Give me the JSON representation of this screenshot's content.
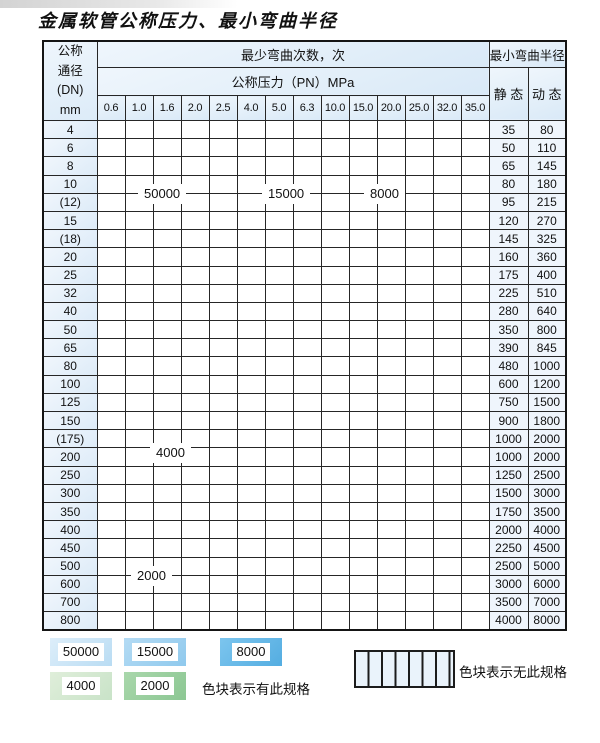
{
  "page": {
    "title": "金属软管公称压力、最小弯曲半径"
  },
  "table": {
    "corner_lines": [
      "公称",
      "通径",
      "(DN)",
      "mm"
    ],
    "cycles_header": "最少弯曲次数，次",
    "radius_header": "最小弯曲半径",
    "pressure_header": "公称压力（PN）MPa",
    "static_label": "静 态",
    "dynamic_label": "动 态",
    "pressures": [
      "0.6",
      "1.0",
      "1.6",
      "2.0",
      "2.5",
      "4.0",
      "5.0",
      "6.3",
      "10.0",
      "15.0",
      "20.0",
      "25.0",
      "32.0",
      "35.0"
    ],
    "zones_key": {
      "A": "50000",
      "B": "15000",
      "C": "8000",
      "D": "4000",
      "E": "2000",
      "X": "无此规格"
    },
    "rows": [
      {
        "dn": "4",
        "zones": "AAAAABBBBCCCCC",
        "static": "35",
        "dynamic": "80"
      },
      {
        "dn": "6",
        "zones": "AAAAABBBBCCCXX",
        "static": "50",
        "dynamic": "110"
      },
      {
        "dn": "8",
        "zones": "AAAAABBBBCCCXX",
        "static": "65",
        "dynamic": "145"
      },
      {
        "dn": "10",
        "zones": "AAAAABBBBCCCXX",
        "static": "80",
        "dynamic": "180"
      },
      {
        "dn": "(12)",
        "zones": "AAAAABBBBCCCXX",
        "static": "95",
        "dynamic": "215"
      },
      {
        "dn": "15",
        "zones": "AAAAABBBCCCCXX",
        "static": "120",
        "dynamic": "270"
      },
      {
        "dn": "(18)",
        "zones": "AAAAABBBCCCXXX",
        "static": "145",
        "dynamic": "325"
      },
      {
        "dn": "20",
        "zones": "AAAAABBBCCCXXX",
        "static": "160",
        "dynamic": "360"
      },
      {
        "dn": "25",
        "zones": "AAAAABBBCCXXXX",
        "static": "175",
        "dynamic": "400"
      },
      {
        "dn": "32",
        "zones": "AAAAABBCCXXXXX",
        "static": "225",
        "dynamic": "510"
      },
      {
        "dn": "40",
        "zones": "AAAAABBCCXXXXX",
        "static": "280",
        "dynamic": "640"
      },
      {
        "dn": "50",
        "zones": "AAAAABBCXXXXXX",
        "static": "350",
        "dynamic": "800"
      },
      {
        "dn": "65",
        "zones": "AAAAABBCXXXXXX",
        "static": "390",
        "dynamic": "845"
      },
      {
        "dn": "80",
        "zones": "AAAAABCXXXXXXX",
        "static": "480",
        "dynamic": "1000"
      },
      {
        "dn": "100",
        "zones": "DDDDDDDXXXXXXX",
        "static": "600",
        "dynamic": "1200"
      },
      {
        "dn": "125",
        "zones": "DDDDDDXXXXXXXX",
        "static": "750",
        "dynamic": "1500"
      },
      {
        "dn": "150",
        "zones": "DDDDDDXXXXXXXX",
        "static": "900",
        "dynamic": "1800"
      },
      {
        "dn": "(175)",
        "zones": "DDDDDDXXXXXXXX",
        "static": "1000",
        "dynamic": "2000"
      },
      {
        "dn": "200",
        "zones": "DDDDDDXXXXXXXX",
        "static": "1000",
        "dynamic": "2000"
      },
      {
        "dn": "250",
        "zones": "DDDDDDXXXXXXXX",
        "static": "1250",
        "dynamic": "2500"
      },
      {
        "dn": "300",
        "zones": "DDDDDDXXXXXXXX",
        "static": "1500",
        "dynamic": "3000"
      },
      {
        "dn": "350",
        "zones": "EEEEEXXXXXXXXX",
        "static": "1750",
        "dynamic": "3500"
      },
      {
        "dn": "400",
        "zones": "EEEEEXXXXXXXXX",
        "static": "2000",
        "dynamic": "4000"
      },
      {
        "dn": "450",
        "zones": "EEEEEXXXXXXXXX",
        "static": "2250",
        "dynamic": "4500"
      },
      {
        "dn": "500",
        "zones": "EEEEXXXXXXXXXX",
        "static": "2500",
        "dynamic": "5000"
      },
      {
        "dn": "600",
        "zones": "EEEEXXXXXXXXXX",
        "static": "3000",
        "dynamic": "6000"
      },
      {
        "dn": "700",
        "zones": "EEEXXXXXXXXXXX",
        "static": "3500",
        "dynamic": "7000"
      },
      {
        "dn": "800",
        "zones": "EEEXXXXXXXXXXX",
        "static": "4000",
        "dynamic": "8000"
      }
    ]
  },
  "overlay_labels": {
    "l50000": "50000",
    "l15000": "15000",
    "l8000": "8000",
    "l4000": "4000",
    "l2000": "2000"
  },
  "legend": {
    "swatches": [
      {
        "label": "50000"
      },
      {
        "label": "15000"
      },
      {
        "label": "8000"
      },
      {
        "label": "4000"
      },
      {
        "label": "2000"
      }
    ],
    "present_note": "色块表示有此规格",
    "absent_note": "色块表示无此规格"
  },
  "colors": {
    "A": [
      "#ddeefa",
      "#b9dcf3"
    ],
    "B": [
      "#b4dbf4",
      "#8fc9ed"
    ],
    "C": [
      "#7cc5ee",
      "#54ade1"
    ],
    "D": [
      "#dfeeda",
      "#c9e3c8"
    ],
    "E": [
      "#a9d7ab",
      "#8cc793"
    ],
    "hatch_bg": "#f3f8fd",
    "hatch_line": "#2d2d2d",
    "grid_line": "#262626"
  }
}
